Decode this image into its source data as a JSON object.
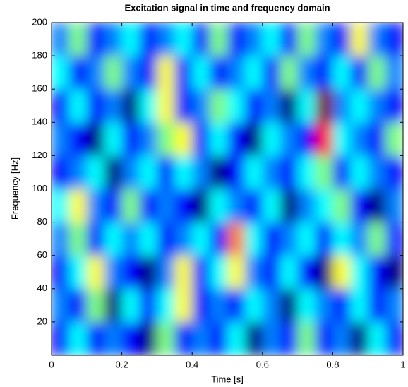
{
  "chart_data": {
    "type": "heatmap",
    "title": "Excitation signal in time and frequency domain",
    "x_label": "Time [s]",
    "y_label": "Frequency [Hz]",
    "xlim": [
      0,
      1
    ],
    "xticks": [
      0,
      0.2,
      0.4,
      0.6,
      0.8,
      1
    ],
    "ylim": [
      0,
      200
    ],
    "yticks": [
      20,
      40,
      60,
      80,
      100,
      120,
      140,
      160,
      180,
      200
    ],
    "colormap": "jet",
    "z": [
      [
        3,
        5,
        3,
        4,
        3,
        2,
        6,
        3,
        4,
        3,
        5,
        2,
        4,
        3,
        6,
        3,
        4,
        2,
        5,
        3
      ],
      [
        4,
        3,
        6,
        2,
        5,
        3,
        5,
        7,
        3,
        4,
        3,
        5,
        4,
        2,
        5,
        4,
        3,
        5,
        3,
        4
      ],
      [
        3,
        5,
        7,
        4,
        3,
        2,
        4,
        7,
        3,
        5,
        7,
        4,
        3,
        5,
        3,
        2,
        7,
        5,
        3,
        2
      ],
      [
        4,
        6,
        3,
        5,
        4,
        5,
        3,
        4,
        5,
        3,
        8,
        5,
        3,
        4,
        5,
        3,
        5,
        4,
        6,
        3
      ],
      [
        5,
        7,
        4,
        3,
        6,
        3,
        4,
        3,
        2,
        5,
        4,
        3,
        5,
        2,
        4,
        5,
        6,
        3,
        2,
        4
      ],
      [
        3,
        4,
        5,
        2,
        4,
        5,
        3,
        5,
        4,
        2,
        3,
        5,
        4,
        3,
        5,
        6,
        3,
        5,
        4,
        3
      ],
      [
        4,
        3,
        2,
        5,
        3,
        4,
        6,
        7,
        3,
        5,
        3,
        2,
        5,
        4,
        3,
        9,
        5,
        4,
        3,
        6
      ],
      [
        3,
        5,
        3,
        4,
        2,
        5,
        7,
        3,
        4,
        6,
        5,
        3,
        4,
        2,
        5,
        10,
        4,
        5,
        4,
        3
      ],
      [
        5,
        3,
        4,
        6,
        4,
        3,
        7,
        3,
        5,
        3,
        4,
        5,
        3,
        6,
        4,
        3,
        5,
        3,
        6,
        4
      ],
      [
        4,
        6,
        3,
        4,
        5,
        3,
        4,
        5,
        3,
        6,
        3,
        4,
        5,
        3,
        6,
        4,
        3,
        7,
        4,
        3
      ]
    ]
  }
}
